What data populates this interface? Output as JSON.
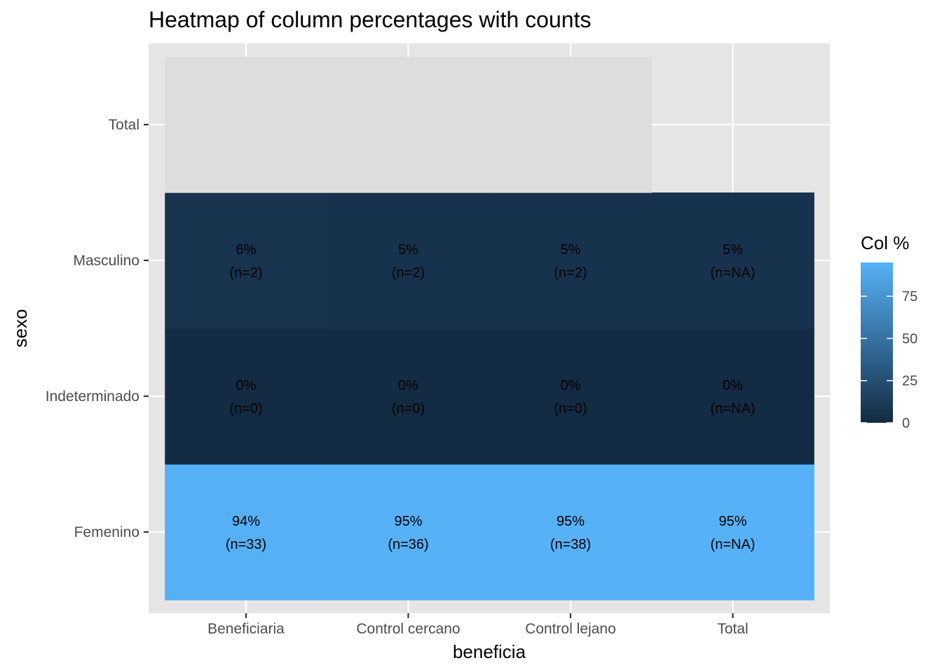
{
  "chart_data": {
    "type": "heatmap",
    "title": "Heatmap of column percentages with counts",
    "xlabel": "beneficia",
    "ylabel": "sexo",
    "x_categories": [
      "Beneficiaria",
      "Control cercano",
      "Control lejano",
      "Total"
    ],
    "y_categories": [
      "Femenino",
      "Indeterminado",
      "Masculino",
      "Total"
    ],
    "cells": [
      {
        "x": "Beneficiaria",
        "y": "Femenino",
        "value": 94,
        "pct_label": "94%",
        "count_label": "(n=33)"
      },
      {
        "x": "Control cercano",
        "y": "Femenino",
        "value": 95,
        "pct_label": "95%",
        "count_label": "(n=36)"
      },
      {
        "x": "Control lejano",
        "y": "Femenino",
        "value": 95,
        "pct_label": "95%",
        "count_label": "(n=38)"
      },
      {
        "x": "Total",
        "y": "Femenino",
        "value": 95,
        "pct_label": "95%",
        "count_label": "(n=NA)"
      },
      {
        "x": "Beneficiaria",
        "y": "Indeterminado",
        "value": 0,
        "pct_label": "0%",
        "count_label": "(n=0)"
      },
      {
        "x": "Control cercano",
        "y": "Indeterminado",
        "value": 0,
        "pct_label": "0%",
        "count_label": "(n=0)"
      },
      {
        "x": "Control lejano",
        "y": "Indeterminado",
        "value": 0,
        "pct_label": "0%",
        "count_label": "(n=0)"
      },
      {
        "x": "Total",
        "y": "Indeterminado",
        "value": 0,
        "pct_label": "0%",
        "count_label": "(n=NA)"
      },
      {
        "x": "Beneficiaria",
        "y": "Masculino",
        "value": 6,
        "pct_label": "6%",
        "count_label": "(n=2)"
      },
      {
        "x": "Control cercano",
        "y": "Masculino",
        "value": 5,
        "pct_label": "5%",
        "count_label": "(n=2)"
      },
      {
        "x": "Control lejano",
        "y": "Masculino",
        "value": 5,
        "pct_label": "5%",
        "count_label": "(n=2)"
      },
      {
        "x": "Total",
        "y": "Masculino",
        "value": 5,
        "pct_label": "5%",
        "count_label": "(n=NA)"
      },
      {
        "x": "Beneficiaria",
        "y": "Total",
        "value": null,
        "pct_label": "",
        "count_label": ""
      },
      {
        "x": "Control cercano",
        "y": "Total",
        "value": null,
        "pct_label": "",
        "count_label": ""
      },
      {
        "x": "Control lejano",
        "y": "Total",
        "value": null,
        "pct_label": "",
        "count_label": ""
      }
    ],
    "legend": {
      "title": "Col %",
      "ticks": [
        0,
        25,
        50,
        75
      ],
      "range": [
        0,
        95
      ],
      "low_color": "#132B43",
      "high_color": "#56B1F7",
      "na_color": "#dddddd"
    },
    "panel_background": "#e5e5e5",
    "grid": true
  }
}
